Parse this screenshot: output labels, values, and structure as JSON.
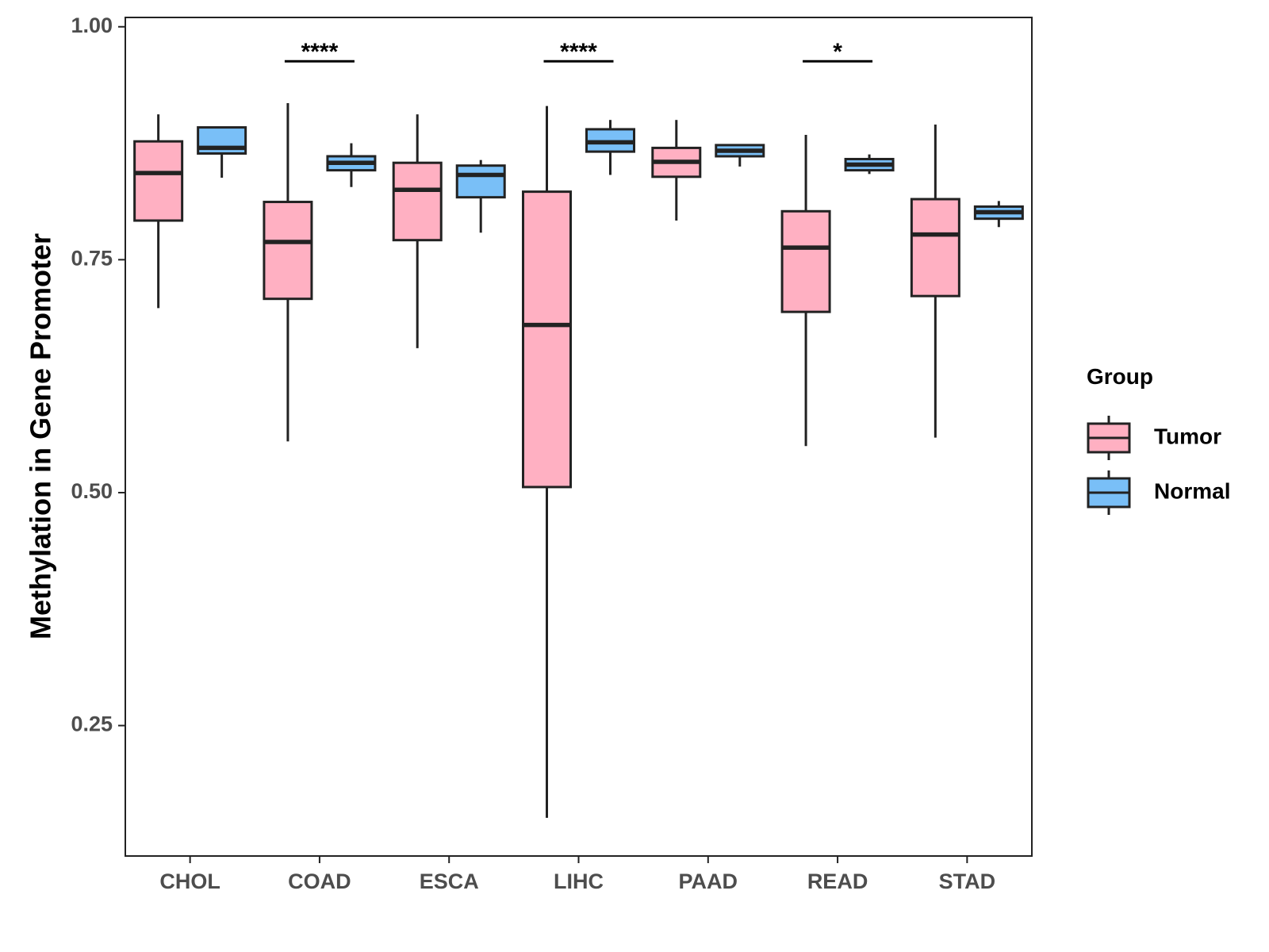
{
  "chart_data": {
    "type": "boxplot",
    "title": "",
    "xlabel": "",
    "ylabel": "Methylation in Gene Promoter",
    "ylim": [
      0.11,
      1.01
    ],
    "yticks": [
      0.25,
      0.5,
      0.75,
      1.0
    ],
    "ytick_labels": [
      "0.25",
      "0.50",
      "0.75",
      "1.00"
    ],
    "categories": [
      "CHOL",
      "COAD",
      "ESCA",
      "LIHC",
      "PAAD",
      "READ",
      "STAD"
    ],
    "series": [
      {
        "name": "Tumor",
        "color": "#FFB0C2",
        "boxes": [
          {
            "whisker_low": 0.698,
            "q1": 0.792,
            "median": 0.843,
            "q3": 0.877,
            "whisker_high": 0.906
          },
          {
            "whisker_low": 0.555,
            "q1": 0.708,
            "median": 0.769,
            "q3": 0.812,
            "whisker_high": 0.918
          },
          {
            "whisker_low": 0.655,
            "q1": 0.771,
            "median": 0.825,
            "q3": 0.854,
            "whisker_high": 0.906
          },
          {
            "whisker_low": 0.151,
            "q1": 0.506,
            "median": 0.68,
            "q3": 0.823,
            "whisker_high": 0.915
          },
          {
            "whisker_low": 0.792,
            "q1": 0.839,
            "median": 0.855,
            "q3": 0.87,
            "whisker_high": 0.9
          },
          {
            "whisker_low": 0.55,
            "q1": 0.694,
            "median": 0.763,
            "q3": 0.802,
            "whisker_high": 0.884
          },
          {
            "whisker_low": 0.559,
            "q1": 0.711,
            "median": 0.777,
            "q3": 0.815,
            "whisker_high": 0.895
          }
        ]
      },
      {
        "name": "Normal",
        "color": "#79BFF7",
        "boxes": [
          {
            "whisker_low": 0.838,
            "q1": 0.864,
            "median": 0.87,
            "q3": 0.892,
            "whisker_high": 0.892
          },
          {
            "whisker_low": 0.828,
            "q1": 0.846,
            "median": 0.854,
            "q3": 0.861,
            "whisker_high": 0.875
          },
          {
            "whisker_low": 0.779,
            "q1": 0.817,
            "median": 0.841,
            "q3": 0.851,
            "whisker_high": 0.857
          },
          {
            "whisker_low": 0.841,
            "q1": 0.866,
            "median": 0.876,
            "q3": 0.89,
            "whisker_high": 0.9
          },
          {
            "whisker_low": 0.85,
            "q1": 0.861,
            "median": 0.867,
            "q3": 0.873,
            "whisker_high": 0.873
          },
          {
            "whisker_low": 0.842,
            "q1": 0.846,
            "median": 0.852,
            "q3": 0.858,
            "whisker_high": 0.863
          },
          {
            "whisker_low": 0.785,
            "q1": 0.794,
            "median": 0.801,
            "q3": 0.807,
            "whisker_high": 0.813
          }
        ]
      }
    ],
    "significance": [
      {
        "category": "COAD",
        "label": "****",
        "y": 0.963
      },
      {
        "category": "LIHC",
        "label": "****",
        "y": 0.963
      },
      {
        "category": "READ",
        "label": "*",
        "y": 0.963
      }
    ],
    "legend": {
      "title": "Group",
      "position": "right",
      "entries": [
        "Tumor",
        "Normal"
      ]
    }
  }
}
